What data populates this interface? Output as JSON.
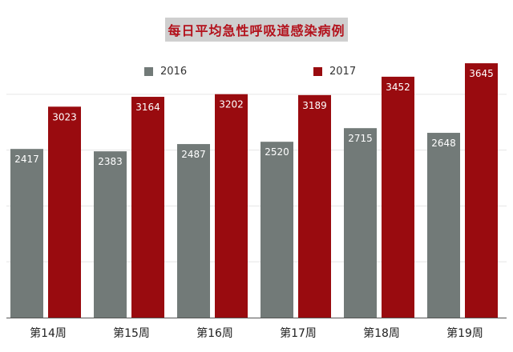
{
  "title": "每日平均急性呼吸道感染病例",
  "legend": {
    "items": [
      {
        "label": "2016",
        "color": "#727a78"
      },
      {
        "label": "2017",
        "color": "#990b0f"
      }
    ]
  },
  "chart_data": {
    "type": "bar",
    "title": "每日平均急性呼吸道感染病例",
    "categories": [
      "第14周",
      "第15周",
      "第16周",
      "第17周",
      "第18周",
      "第19周"
    ],
    "series": [
      {
        "name": "2016",
        "color": "#727a78",
        "values": [
          2417,
          2383,
          2487,
          2520,
          2715,
          2648
        ]
      },
      {
        "name": "2017",
        "color": "#990b0f",
        "values": [
          3023,
          3164,
          3202,
          3189,
          3452,
          3645
        ]
      }
    ],
    "ylim": [
      0,
      3900
    ],
    "grid": true,
    "legend_position": "top",
    "data_labels": true
  }
}
